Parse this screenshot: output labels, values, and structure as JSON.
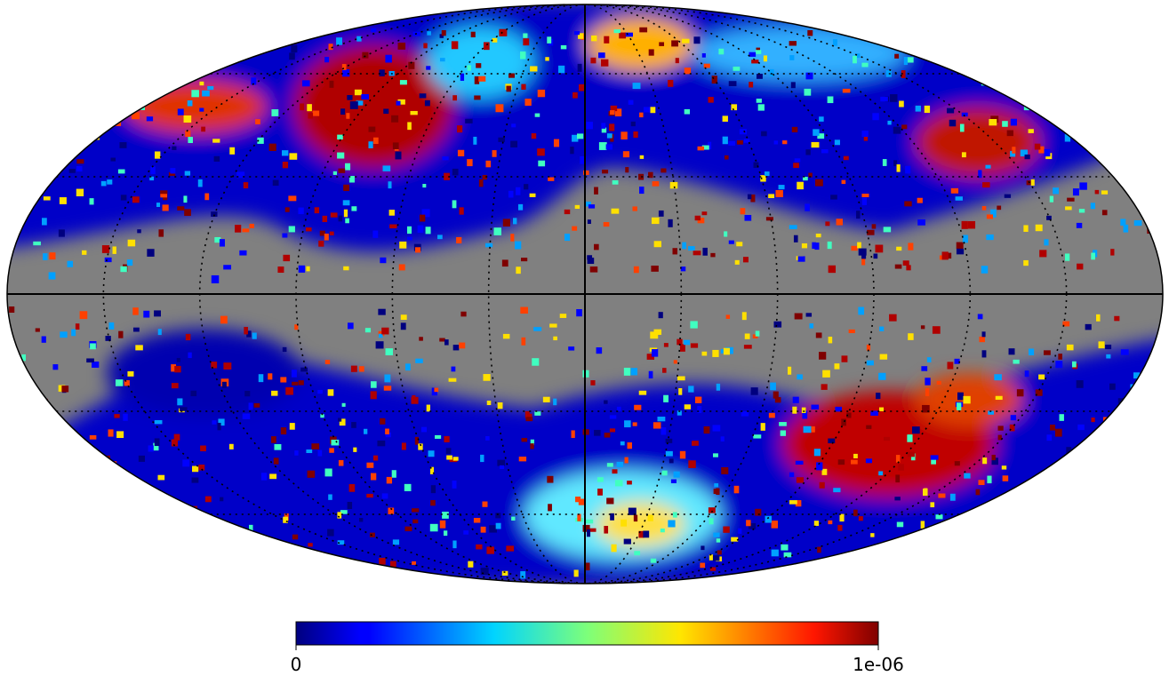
{
  "colorbar": {
    "colormap": "jet",
    "lim": [
      0,
      1e-06
    ],
    "ticks": [
      0,
      {
        "value": 1e-06,
        "label": "1e-06"
      }
    ]
  }
}
